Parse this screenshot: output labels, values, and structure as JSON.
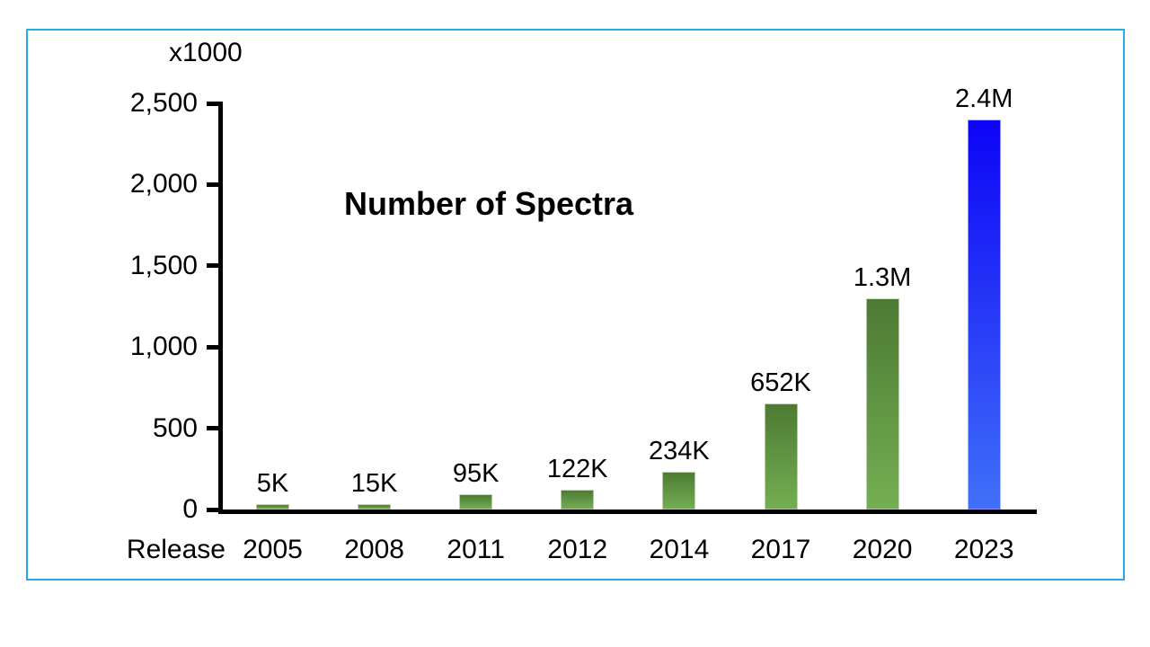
{
  "page": {
    "background": "#ffffff",
    "frame_border_color": "#29abe2"
  },
  "chart_data": {
    "type": "bar",
    "title": "Number of Spectra",
    "unit_label": "x1000",
    "x_prefix_label": "Release",
    "categories": [
      "2005",
      "2008",
      "2011",
      "2012",
      "2014",
      "2017",
      "2020",
      "2023"
    ],
    "values": [
      5,
      15,
      95,
      122,
      234,
      652,
      1300,
      2400
    ],
    "bar_labels": [
      "5K",
      "15K",
      "95K",
      "122K",
      "234K",
      "652K",
      "1.3M",
      "2.4M"
    ],
    "bar_color_keys": [
      "green",
      "green",
      "green",
      "green",
      "green",
      "green",
      "green",
      "blue"
    ],
    "palette": {
      "green": {
        "top": "#4d7a33",
        "bottom": "#74ae53"
      },
      "blue": {
        "top": "#0d04f6",
        "bottom": "#4070f8"
      }
    },
    "ylim": [
      0,
      2500
    ],
    "y_ticks": [
      {
        "label": "2,500",
        "value": 2500
      },
      {
        "label": "2,000",
        "value": 2000
      },
      {
        "label": "1,500",
        "value": 1500
      },
      {
        "label": "1,000",
        "value": 1000
      },
      {
        "label": "500",
        "value": 500
      },
      {
        "label": "0",
        "value": 0
      }
    ],
    "axis_color": "#000000",
    "grid": false,
    "legend": "none"
  }
}
